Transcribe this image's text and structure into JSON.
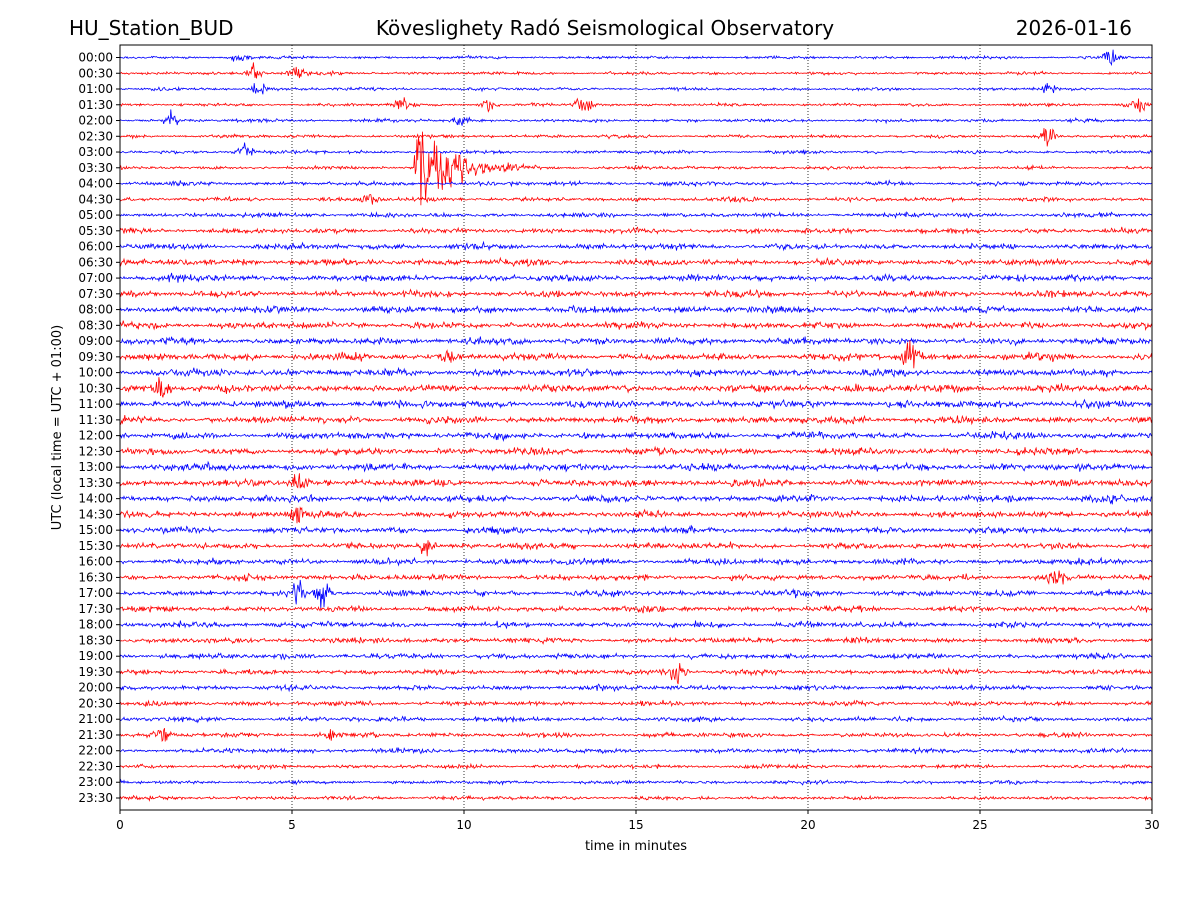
{
  "header": {
    "station": "HU_Station_BUD",
    "observatory": "Köveslighety Radó Seismological Observatory",
    "date": "2026-01-16"
  },
  "chart_data": {
    "type": "line",
    "title": "Köveslighety Radó Seismological Observatory",
    "xlabel": "time in minutes",
    "ylabel": "UTC (local time = UTC + 01:00)",
    "xlim": [
      0,
      30
    ],
    "x_ticks": [
      "0",
      "5",
      "10",
      "15",
      "20",
      "25",
      "30"
    ],
    "grid": "vertical dotted",
    "trace_colors": [
      "#0000ff",
      "#ff0000"
    ],
    "rows": [
      "00:00",
      "00:30",
      "01:00",
      "01:30",
      "02:00",
      "02:30",
      "03:00",
      "03:30",
      "04:00",
      "04:30",
      "05:00",
      "05:30",
      "06:00",
      "06:30",
      "07:00",
      "07:30",
      "08:00",
      "08:30",
      "09:00",
      "09:30",
      "10:00",
      "10:30",
      "11:00",
      "11:30",
      "12:00",
      "12:30",
      "13:00",
      "13:30",
      "14:00",
      "14:30",
      "15:00",
      "15:30",
      "16:00",
      "16:30",
      "17:00",
      "17:30",
      "18:00",
      "18:30",
      "19:00",
      "19:30",
      "20:00",
      "20:30",
      "21:00",
      "21:30",
      "22:00",
      "22:30",
      "23:00",
      "23:30"
    ],
    "noise_level": [
      0.18,
      0.18,
      0.18,
      0.18,
      0.2,
      0.2,
      0.2,
      0.2,
      0.25,
      0.25,
      0.28,
      0.3,
      0.35,
      0.38,
      0.4,
      0.4,
      0.42,
      0.4,
      0.42,
      0.42,
      0.42,
      0.45,
      0.45,
      0.42,
      0.4,
      0.4,
      0.42,
      0.42,
      0.42,
      0.4,
      0.38,
      0.36,
      0.36,
      0.36,
      0.36,
      0.34,
      0.34,
      0.32,
      0.32,
      0.3,
      0.3,
      0.28,
      0.28,
      0.28,
      0.28,
      0.24,
      0.22,
      0.22
    ],
    "events": [
      {
        "row": "00:00",
        "t": 3.5,
        "amp": 0.6
      },
      {
        "row": "00:00",
        "t": 28.8,
        "amp": 0.8
      },
      {
        "row": "00:30",
        "t": 3.9,
        "amp": 1.0
      },
      {
        "row": "00:30",
        "t": 5.1,
        "amp": 0.8
      },
      {
        "row": "01:00",
        "t": 4.1,
        "amp": 0.8
      },
      {
        "row": "01:00",
        "t": 27.0,
        "amp": 0.6
      },
      {
        "row": "01:30",
        "t": 8.2,
        "amp": 0.8
      },
      {
        "row": "01:30",
        "t": 10.7,
        "amp": 0.6
      },
      {
        "row": "01:30",
        "t": 13.5,
        "amp": 1.2
      },
      {
        "row": "01:30",
        "t": 29.6,
        "amp": 0.8
      },
      {
        "row": "02:00",
        "t": 1.5,
        "amp": 0.8
      },
      {
        "row": "02:00",
        "t": 9.9,
        "amp": 0.5
      },
      {
        "row": "02:30",
        "t": 27.0,
        "amp": 1.2
      },
      {
        "row": "03:00",
        "t": 3.6,
        "amp": 1.0
      },
      {
        "row": "03:30",
        "t": 8.6,
        "amp": 5.0
      },
      {
        "row": "04:30",
        "t": 7.2,
        "amp": 0.8
      },
      {
        "row": "09:30",
        "t": 23.0,
        "amp": 1.6
      },
      {
        "row": "09:30",
        "t": 9.6,
        "amp": 0.8
      },
      {
        "row": "10:30",
        "t": 1.2,
        "amp": 0.9
      },
      {
        "row": "13:30",
        "t": 5.2,
        "amp": 1.0
      },
      {
        "row": "14:30",
        "t": 5.2,
        "amp": 1.2
      },
      {
        "row": "15:30",
        "t": 8.9,
        "amp": 0.8
      },
      {
        "row": "16:30",
        "t": 27.2,
        "amp": 1.0
      },
      {
        "row": "17:00",
        "t": 5.1,
        "amp": 1.2
      },
      {
        "row": "17:00",
        "t": 5.9,
        "amp": 1.6
      },
      {
        "row": "19:30",
        "t": 16.2,
        "amp": 1.4
      },
      {
        "row": "21:30",
        "t": 1.3,
        "amp": 0.8
      },
      {
        "row": "21:30",
        "t": 6.1,
        "amp": 0.7
      }
    ]
  }
}
